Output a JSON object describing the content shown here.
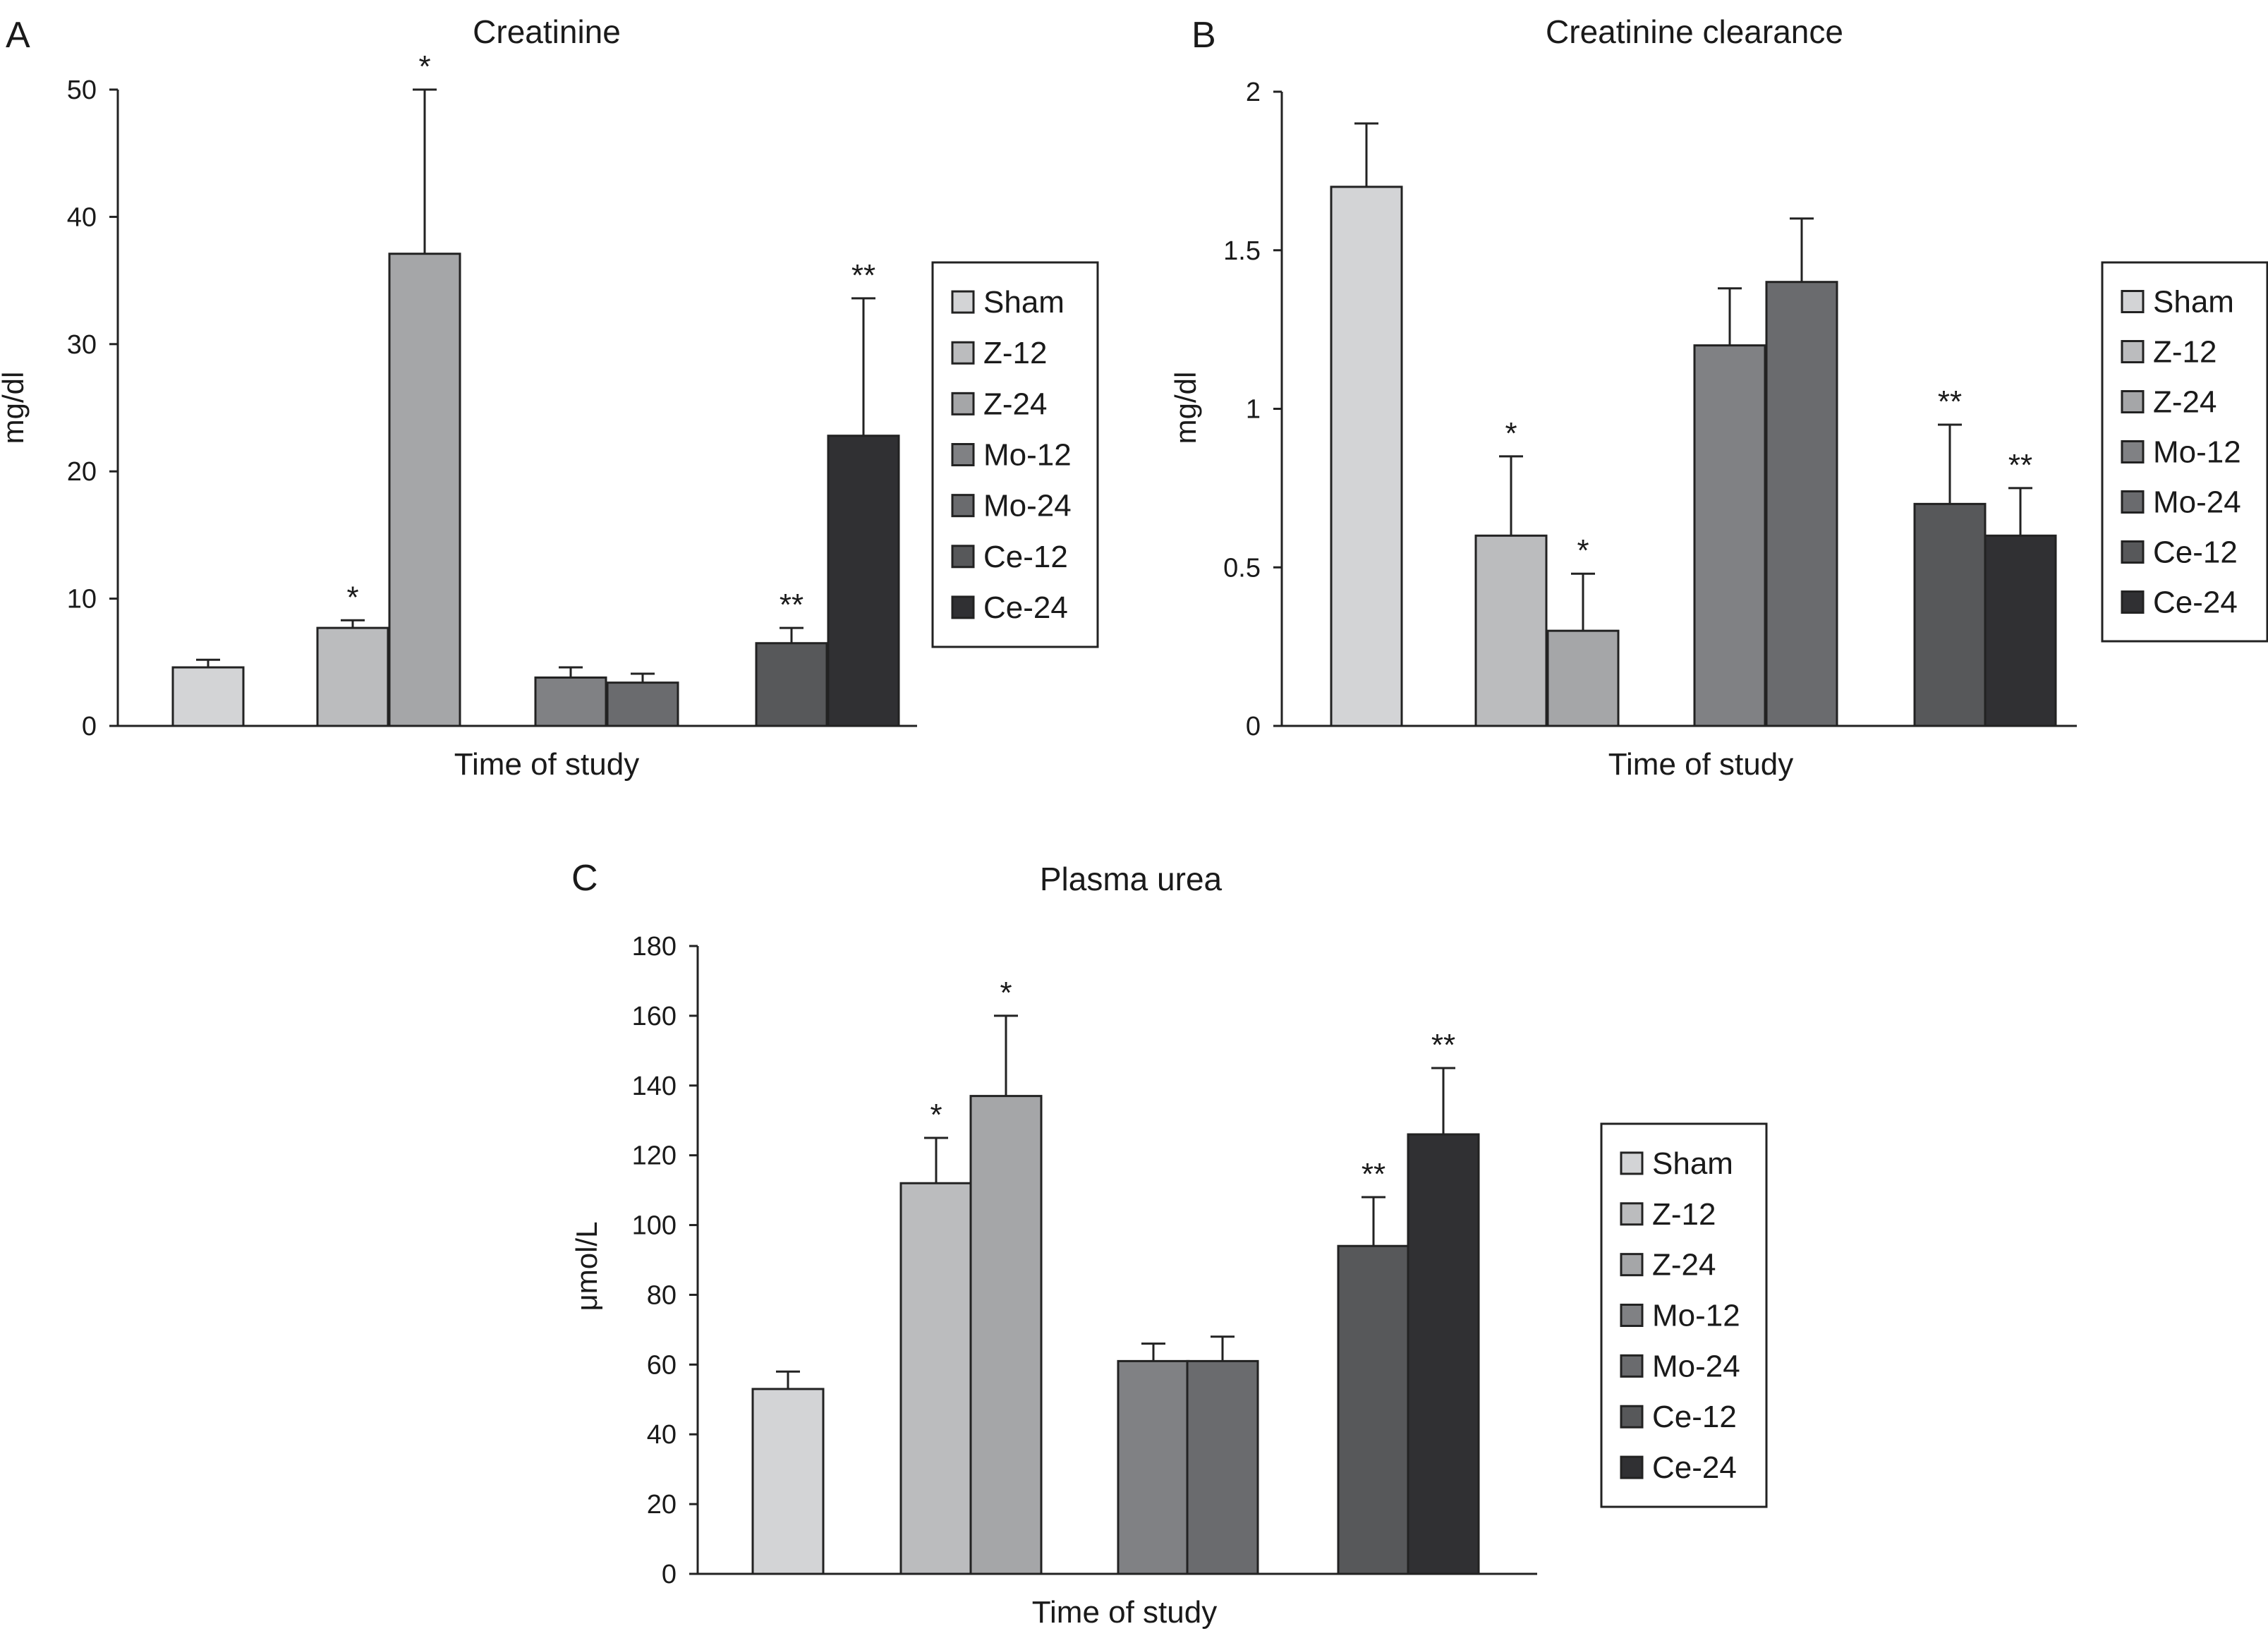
{
  "colors": {
    "Sham": "#d3d4d6",
    "Z-12": "#bbbcbe",
    "Z-24": "#a5a6a8",
    "Mo-12": "#808184",
    "Mo-24": "#6a6b6e",
    "Ce-12": "#57585a",
    "Ce-24": "#303033",
    "axis": "#222222"
  },
  "chart_data": [
    {
      "id": "A",
      "type": "bar",
      "panel_label": "A",
      "title": "Creatinine",
      "xlabel": "Time of study",
      "ylabel": "mg/dl",
      "ylim": [
        0,
        50
      ],
      "yticks": [
        "0",
        "10",
        "20",
        "30",
        "40",
        "50"
      ],
      "legend": [
        "Sham",
        "Z-12",
        "Z-24",
        "Mo-12",
        "Mo-24",
        "Ce-12",
        "Ce-24"
      ],
      "legend_position": "right",
      "bars": [
        {
          "series": "Sham",
          "value": 4.6,
          "error": 0.6,
          "sig": ""
        },
        {
          "series": "Z-12",
          "value": 7.7,
          "error": 0.6,
          "sig": "*"
        },
        {
          "series": "Z-24",
          "value": 37.1,
          "error": 12.9,
          "sig": "*"
        },
        {
          "series": "Mo-12",
          "value": 3.8,
          "error": 0.8,
          "sig": ""
        },
        {
          "series": "Mo-24",
          "value": 3.4,
          "error": 0.7,
          "sig": ""
        },
        {
          "series": "Ce-12",
          "value": 6.5,
          "error": 1.2,
          "sig": "**"
        },
        {
          "series": "Ce-24",
          "value": 22.8,
          "error": 10.8,
          "sig": "**"
        }
      ]
    },
    {
      "id": "B",
      "type": "bar",
      "panel_label": "B",
      "title": "Creatinine clearance",
      "xlabel": "Time of study",
      "ylabel": "mg/dl",
      "ylim": [
        0,
        2
      ],
      "yticks": [
        "0",
        "0.5",
        "1",
        "1.5",
        "2"
      ],
      "legend": [
        "Sham",
        "Z-12",
        "Z-24",
        "Mo-12",
        "Mo-24",
        "Ce-12",
        "Ce-24"
      ],
      "legend_position": "right",
      "bars": [
        {
          "series": "Sham",
          "value": 1.7,
          "error": 0.2,
          "sig": ""
        },
        {
          "series": "Z-12",
          "value": 0.6,
          "error": 0.25,
          "sig": "*"
        },
        {
          "series": "Z-24",
          "value": 0.3,
          "error": 0.18,
          "sig": "*"
        },
        {
          "series": "Mo-12",
          "value": 1.2,
          "error": 0.18,
          "sig": ""
        },
        {
          "series": "Mo-24",
          "value": 1.4,
          "error": 0.2,
          "sig": ""
        },
        {
          "series": "Ce-12",
          "value": 0.7,
          "error": 0.25,
          "sig": "**"
        },
        {
          "series": "Ce-24",
          "value": 0.6,
          "error": 0.15,
          "sig": "**"
        }
      ]
    },
    {
      "id": "C",
      "type": "bar",
      "panel_label": "C",
      "title": "Plasma urea",
      "xlabel": "Time of study",
      "ylabel": "μmol/L",
      "ylim": [
        0,
        180
      ],
      "yticks": [
        "0",
        "20",
        "40",
        "60",
        "80",
        "100",
        "120",
        "140",
        "160",
        "180"
      ],
      "legend": [
        "Sham",
        "Z-12",
        "Z-24",
        "Mo-12",
        "Mo-24",
        "Ce-12",
        "Ce-24"
      ],
      "legend_position": "right",
      "bars": [
        {
          "series": "Sham",
          "value": 53,
          "error": 5,
          "sig": ""
        },
        {
          "series": "Z-12",
          "value": 112,
          "error": 13,
          "sig": "*"
        },
        {
          "series": "Z-24",
          "value": 137,
          "error": 23,
          "sig": "*"
        },
        {
          "series": "Mo-12",
          "value": 61,
          "error": 5,
          "sig": ""
        },
        {
          "series": "Mo-24",
          "value": 61,
          "error": 7,
          "sig": ""
        },
        {
          "series": "Ce-12",
          "value": 94,
          "error": 14,
          "sig": "**"
        },
        {
          "series": "Ce-24",
          "value": 126,
          "error": 19,
          "sig": "**"
        }
      ]
    }
  ]
}
